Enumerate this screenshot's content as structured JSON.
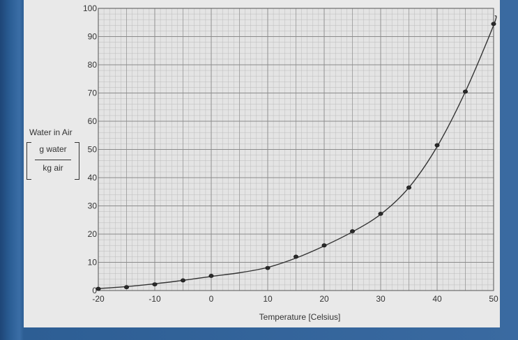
{
  "chart_data": {
    "type": "line",
    "title": "",
    "xlabel": "Temperature [Celsius]",
    "ylabel": {
      "title": "Water in Air",
      "numerator": "g water",
      "denominator": "kg air"
    },
    "xlim": [
      -20,
      50
    ],
    "ylim": [
      0,
      100
    ],
    "x_ticks": [
      -20,
      -10,
      0,
      10,
      20,
      30,
      40,
      50
    ],
    "y_ticks": [
      0,
      10,
      20,
      30,
      40,
      50,
      60,
      70,
      80,
      90,
      100
    ],
    "grid": true,
    "legend": "none",
    "series": [
      {
        "x": [
          -20,
          -15,
          -10,
          -5,
          0,
          10,
          15,
          20,
          25,
          30,
          35,
          40,
          45,
          50
        ],
        "y": [
          0.6,
          1.2,
          2.2,
          3.6,
          5.2,
          8.0,
          12.0,
          16.0,
          21.0,
          27.2,
          36.5,
          51.5,
          70.5,
          94.5
        ]
      }
    ],
    "curve": {
      "x": [
        -20,
        -15,
        -10,
        -5,
        0,
        5,
        10,
        15,
        20,
        25,
        30,
        35,
        40,
        45,
        50,
        50.3
      ],
      "y": [
        0.7,
        1.4,
        2.4,
        3.6,
        5.0,
        6.3,
        8.2,
        11.5,
        15.8,
        20.8,
        27.0,
        36.5,
        51.0,
        70.5,
        94.0,
        97.5
      ]
    },
    "colors": {
      "paper": "#e9e9e9",
      "grid_minor": "#bcbcbc",
      "grid_major": "#8a8a8a",
      "curve": "#333333",
      "points": "#2a2a2a",
      "text": "#333333"
    }
  }
}
